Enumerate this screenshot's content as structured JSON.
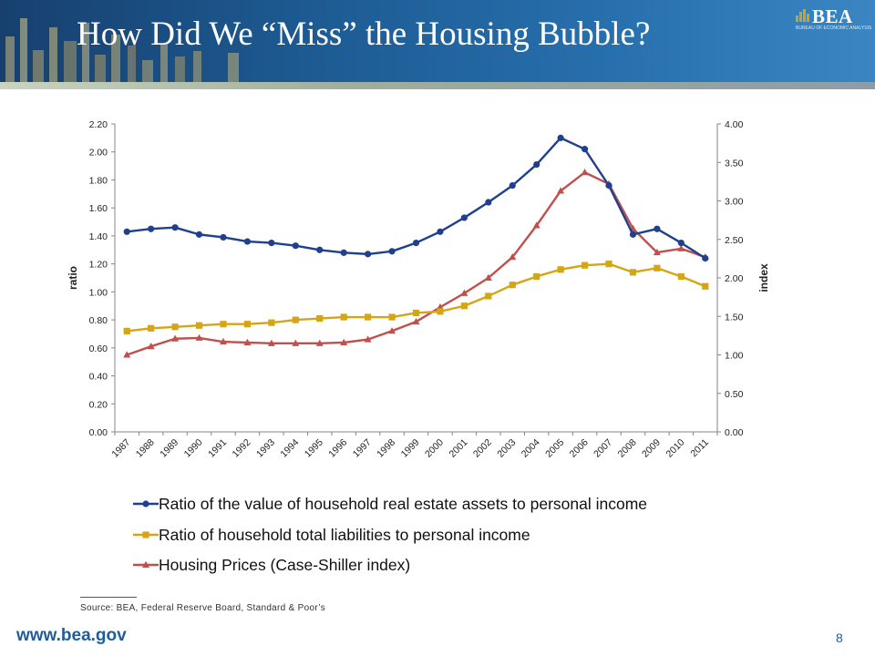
{
  "slide": {
    "title": "How Did We “Miss” the Housing Bubble?",
    "logo_text": "BEA",
    "logo_subtext": "BUREAU OF ECONOMIC ANALYSIS",
    "footnote": "Source: BEA, Federal Reserve Board, Standard & Poor’s",
    "website": "www.bea.gov",
    "page_number": "8"
  },
  "colors": {
    "header": "#1d5a92",
    "series_real_estate": "#1f3f8f",
    "series_liabilities": "#d4a514",
    "series_housing": "#c0504d"
  },
  "chart_data": {
    "type": "line",
    "title": "",
    "xlabel": "",
    "ylabel": "ratio",
    "ylabel_right": "index",
    "ylim": [
      0,
      2.2
    ],
    "ylim_right": [
      0,
      4.0
    ],
    "yticks": [
      "0.00",
      "0.20",
      "0.40",
      "0.60",
      "0.80",
      "1.00",
      "1.20",
      "1.40",
      "1.60",
      "1.80",
      "2.00",
      "2.20"
    ],
    "yticks_right": [
      "0.00",
      "0.50",
      "1.00",
      "1.50",
      "2.00",
      "2.50",
      "3.00",
      "3.50",
      "4.00"
    ],
    "grid": false,
    "legend_position": "bottom",
    "categories": [
      "1987",
      "1988",
      "1989",
      "1990",
      "1991",
      "1992",
      "1993",
      "1994",
      "1995",
      "1996",
      "1997",
      "1998",
      "1999",
      "2000",
      "2001",
      "2002",
      "2003",
      "2004",
      "2005",
      "2006",
      "2007",
      "2008",
      "2009",
      "2010",
      "2011"
    ],
    "series": [
      {
        "name": "Ratio of the value of household real estate assets to personal income",
        "axis": "left",
        "marker": "circle",
        "values": [
          1.43,
          1.45,
          1.46,
          1.41,
          1.39,
          1.36,
          1.35,
          1.33,
          1.3,
          1.28,
          1.27,
          1.29,
          1.35,
          1.43,
          1.53,
          1.64,
          1.76,
          1.91,
          2.1,
          2.02,
          1.76,
          1.41,
          1.45,
          1.35,
          1.24
        ]
      },
      {
        "name": "Ratio of household total liabilities to personal income",
        "axis": "left",
        "marker": "square",
        "values": [
          0.72,
          0.74,
          0.75,
          0.76,
          0.77,
          0.77,
          0.78,
          0.8,
          0.81,
          0.82,
          0.82,
          0.82,
          0.85,
          0.86,
          0.9,
          0.97,
          1.05,
          1.11,
          1.16,
          1.19,
          1.2,
          1.14,
          1.17,
          1.11,
          1.04
        ]
      },
      {
        "name": "Housing Prices (Case-Shiller index)",
        "axis": "right",
        "marker": "triangle",
        "values": [
          1.0,
          1.11,
          1.21,
          1.22,
          1.17,
          1.16,
          1.15,
          1.15,
          1.15,
          1.16,
          1.2,
          1.31,
          1.43,
          1.62,
          1.8,
          2.0,
          2.27,
          2.68,
          3.13,
          3.37,
          3.22,
          2.64,
          2.33,
          2.38,
          2.27
        ]
      }
    ]
  }
}
